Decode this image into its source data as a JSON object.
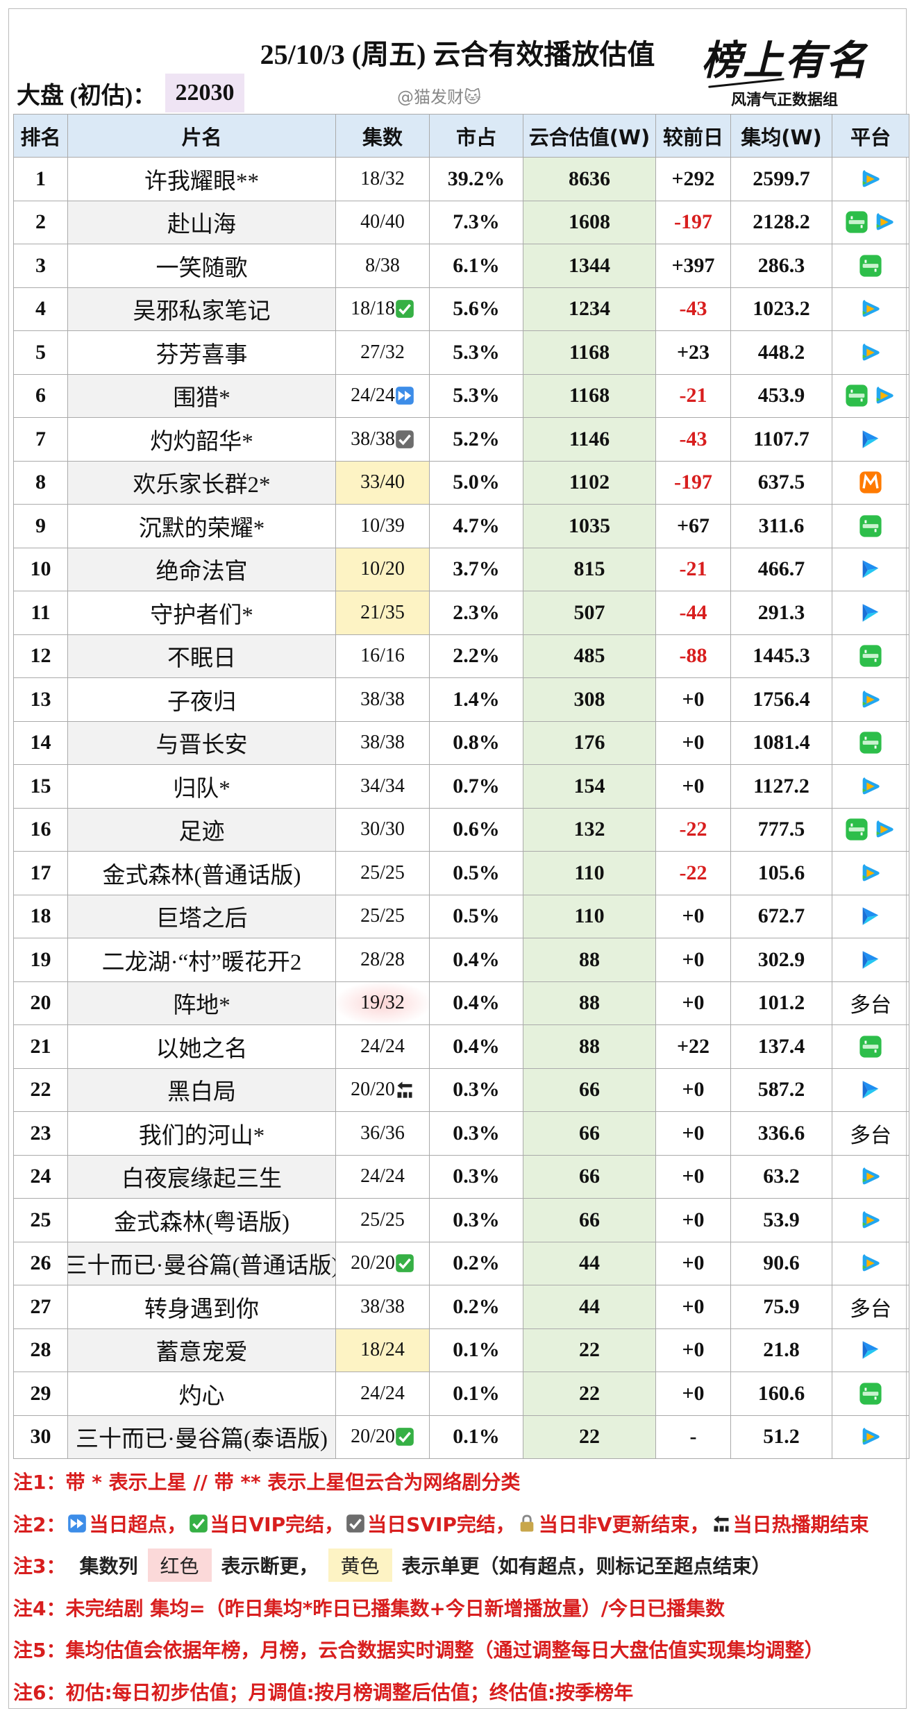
{
  "header": {
    "title": "25/10/3 (周五) 云合有效播放估值",
    "market_label": "大盘 (初估)：",
    "market_value": "22030",
    "watermark": "@猫发财🐱",
    "logo_title": "榜上有名",
    "logo_subtitle": "风清气正数据组"
  },
  "table": {
    "columns": [
      "排名",
      "片名",
      "集数",
      "市占",
      "云合估值(W)",
      "较前日",
      "集均(W)",
      "平台"
    ],
    "rows": [
      {
        "rank": "1",
        "name": "许我耀眼**",
        "episodes": "18/32",
        "share": "39.2%",
        "estimate": "8636",
        "change": "+292",
        "avg": "2599.7",
        "icons": [
          "tencent"
        ]
      },
      {
        "rank": "2",
        "name": "赴山海",
        "episodes": "40/40",
        "share": "7.3%",
        "estimate": "1608",
        "change": "-197",
        "avg": "2128.2",
        "icons": [
          "iqiyi",
          "tencent"
        ]
      },
      {
        "rank": "3",
        "name": "一笑随歌",
        "episodes": "8/38",
        "share": "6.1%",
        "estimate": "1344",
        "change": "+397",
        "avg": "286.3",
        "icons": [
          "iqiyi"
        ]
      },
      {
        "rank": "4",
        "name": "吴邪私家笔记",
        "episodes": "18/18",
        "badge": "vip",
        "share": "5.6%",
        "estimate": "1234",
        "change": "-43",
        "avg": "1023.2",
        "icons": [
          "tencent"
        ]
      },
      {
        "rank": "5",
        "name": "芬芳喜事",
        "episodes": "27/32",
        "share": "5.3%",
        "estimate": "1168",
        "change": "+23",
        "avg": "448.2",
        "icons": [
          "tencent"
        ]
      },
      {
        "rank": "6",
        "name": "围猎*",
        "episodes": "24/24",
        "badge": "ff",
        "share": "5.3%",
        "estimate": "1168",
        "change": "-21",
        "avg": "453.9",
        "icons": [
          "iqiyi",
          "tencent"
        ]
      },
      {
        "rank": "7",
        "name": "灼灼韶华*",
        "episodes": "38/38",
        "badge": "svip",
        "share": "5.2%",
        "estimate": "1146",
        "change": "-43",
        "avg": "1107.7",
        "icons": [
          "youku"
        ]
      },
      {
        "rank": "8",
        "name": "欢乐家长群2*",
        "episodes": "33/40",
        "highlight": "#fdf3c4",
        "share": "5.0%",
        "estimate": "1102",
        "change": "-197",
        "avg": "637.5",
        "icons": [
          "mango"
        ]
      },
      {
        "rank": "9",
        "name": "沉默的荣耀*",
        "episodes": "10/39",
        "share": "4.7%",
        "estimate": "1035",
        "change": "+67",
        "avg": "311.6",
        "icons": [
          "iqiyi"
        ]
      },
      {
        "rank": "10",
        "name": "绝命法官",
        "episodes": "10/20",
        "highlight": "#fdf3c4",
        "share": "3.7%",
        "estimate": "815",
        "change": "-21",
        "avg": "466.7",
        "icons": [
          "youku"
        ]
      },
      {
        "rank": "11",
        "name": "守护者们*",
        "episodes": "21/35",
        "highlight": "#fdf3c4",
        "share": "2.3%",
        "estimate": "507",
        "change": "-44",
        "avg": "291.3",
        "icons": [
          "youku"
        ]
      },
      {
        "rank": "12",
        "name": "不眠日",
        "episodes": "16/16",
        "share": "2.2%",
        "estimate": "485",
        "change": "-88",
        "avg": "1445.3",
        "icons": [
          "iqiyi"
        ]
      },
      {
        "rank": "13",
        "name": "子夜归",
        "episodes": "38/38",
        "share": "1.4%",
        "estimate": "308",
        "change": "+0",
        "avg": "1756.4",
        "icons": [
          "tencent"
        ]
      },
      {
        "rank": "14",
        "name": "与晋长安",
        "episodes": "38/38",
        "share": "0.8%",
        "estimate": "176",
        "change": "+0",
        "avg": "1081.4",
        "icons": [
          "iqiyi"
        ]
      },
      {
        "rank": "15",
        "name": "归队*",
        "episodes": "34/34",
        "share": "0.7%",
        "estimate": "154",
        "change": "+0",
        "avg": "1127.2",
        "icons": [
          "tencent"
        ]
      },
      {
        "rank": "16",
        "name": "足迹",
        "episodes": "30/30",
        "share": "0.6%",
        "estimate": "132",
        "change": "-22",
        "avg": "777.5",
        "icons": [
          "iqiyi",
          "tencent"
        ]
      },
      {
        "rank": "17",
        "name": "金式森林(普通话版)",
        "episodes": "25/25",
        "share": "0.5%",
        "estimate": "110",
        "change": "-22",
        "avg": "105.6",
        "icons": [
          "tencent"
        ]
      },
      {
        "rank": "18",
        "name": "巨塔之后",
        "episodes": "25/25",
        "share": "0.5%",
        "estimate": "110",
        "change": "+0",
        "avg": "672.7",
        "icons": [
          "youku"
        ]
      },
      {
        "rank": "19",
        "name": "二龙湖·“村”暖花开2",
        "episodes": "28/28",
        "share": "0.4%",
        "estimate": "88",
        "change": "+0",
        "avg": "302.9",
        "icons": [
          "youku"
        ]
      },
      {
        "rank": "20",
        "name": "阵地*",
        "episodes": "19/32",
        "highlight": "#fbd4d4",
        "share": "0.4%",
        "estimate": "88",
        "change": "+0",
        "avg": "101.2",
        "platform": "多台"
      },
      {
        "rank": "21",
        "name": "以她之名",
        "episodes": "24/24",
        "share": "0.4%",
        "estimate": "88",
        "change": "+22",
        "avg": "137.4",
        "icons": [
          "iqiyi"
        ]
      },
      {
        "rank": "22",
        "name": "黑白局",
        "episodes": "20/20",
        "badge": "end",
        "share": "0.3%",
        "estimate": "66",
        "change": "+0",
        "avg": "587.2",
        "icons": [
          "youku"
        ]
      },
      {
        "rank": "23",
        "name": "我们的河山*",
        "episodes": "36/36",
        "share": "0.3%",
        "estimate": "66",
        "change": "+0",
        "avg": "336.6",
        "platform": "多台"
      },
      {
        "rank": "24",
        "name": "白夜宸缘起三生",
        "episodes": "24/24",
        "share": "0.3%",
        "estimate": "66",
        "change": "+0",
        "avg": "63.2",
        "icons": [
          "tencent"
        ]
      },
      {
        "rank": "25",
        "name": "金式森林(粤语版)",
        "episodes": "25/25",
        "share": "0.3%",
        "estimate": "66",
        "change": "+0",
        "avg": "53.9",
        "icons": [
          "tencent"
        ]
      },
      {
        "rank": "26",
        "name": "三十而已·曼谷篇(普通话版)",
        "episodes": "20/20",
        "badge": "vip",
        "share": "0.2%",
        "estimate": "44",
        "change": "+0",
        "avg": "90.6",
        "icons": [
          "tencent"
        ]
      },
      {
        "rank": "27",
        "name": "转身遇到你",
        "episodes": "38/38",
        "share": "0.2%",
        "estimate": "44",
        "change": "+0",
        "avg": "75.9",
        "platform": "多台"
      },
      {
        "rank": "28",
        "name": "蓄意宠爱",
        "episodes": "18/24",
        "highlight": "#fdf3c4",
        "share": "0.1%",
        "estimate": "22",
        "change": "+0",
        "avg": "21.8",
        "icons": [
          "youku"
        ]
      },
      {
        "rank": "29",
        "name": "灼心",
        "episodes": "24/24",
        "share": "0.1%",
        "estimate": "22",
        "change": "+0",
        "avg": "160.6",
        "icons": [
          "iqiyi"
        ]
      },
      {
        "rank": "30",
        "name": "三十而已·曼谷篇(泰语版)",
        "episodes": "20/20",
        "badge": "vip",
        "share": "0.1%",
        "estimate": "22",
        "change": "-",
        "avg": "51.2",
        "icons": [
          "tencent"
        ]
      }
    ]
  },
  "notes": [
    {
      "label": "注1：",
      "color": "#d81e1e",
      "parts": [
        {
          "text": "带 * 表示上星 // 带 ** 表示上星但云合为网络剧分类"
        }
      ]
    },
    {
      "label": "注2：",
      "color": "#d81e1e",
      "parts": [
        {
          "badge": "ff",
          "text": "当日超点，"
        },
        {
          "badge": "vip",
          "text": "当日VIP完结，"
        },
        {
          "badge": "svip",
          "text": "当日SVIP完结，"
        },
        {
          "badge": "lock",
          "text": "当日非V更新结束，"
        },
        {
          "badge": "end",
          "text": "当日热播期结束"
        }
      ]
    },
    {
      "label": "注3：",
      "color": "#222222",
      "parts": [
        {
          "text": "集数列"
        },
        {
          "text": "红色",
          "highlight": "#fbd9d9"
        },
        {
          "text": "表示断更，"
        },
        {
          "text": "黄色",
          "highlight": "#fdf3c4"
        },
        {
          "text": "表示单更（如有超点，则标记至超点结束）"
        }
      ]
    },
    {
      "label": "注4：",
      "color": "#d81e1e",
      "parts": [
        {
          "text": "未完结剧 集均=（昨日集均*昨日已播集数+今日新增播放量）/今日已播集数"
        }
      ]
    },
    {
      "label": "注5：",
      "color": "#d81e1e",
      "parts": [
        {
          "text": "集均估值会依据年榜，月榜，云合数据实时调整（通过调整每日大盘估值实现集均调整）"
        }
      ]
    },
    {
      "label": "注6：",
      "color": "#d81e1e",
      "parts": [
        {
          "text": "初估:每日初步估值；月调值:按月榜调整后估值；终估值:按季榜年"
        }
      ]
    }
  ]
}
